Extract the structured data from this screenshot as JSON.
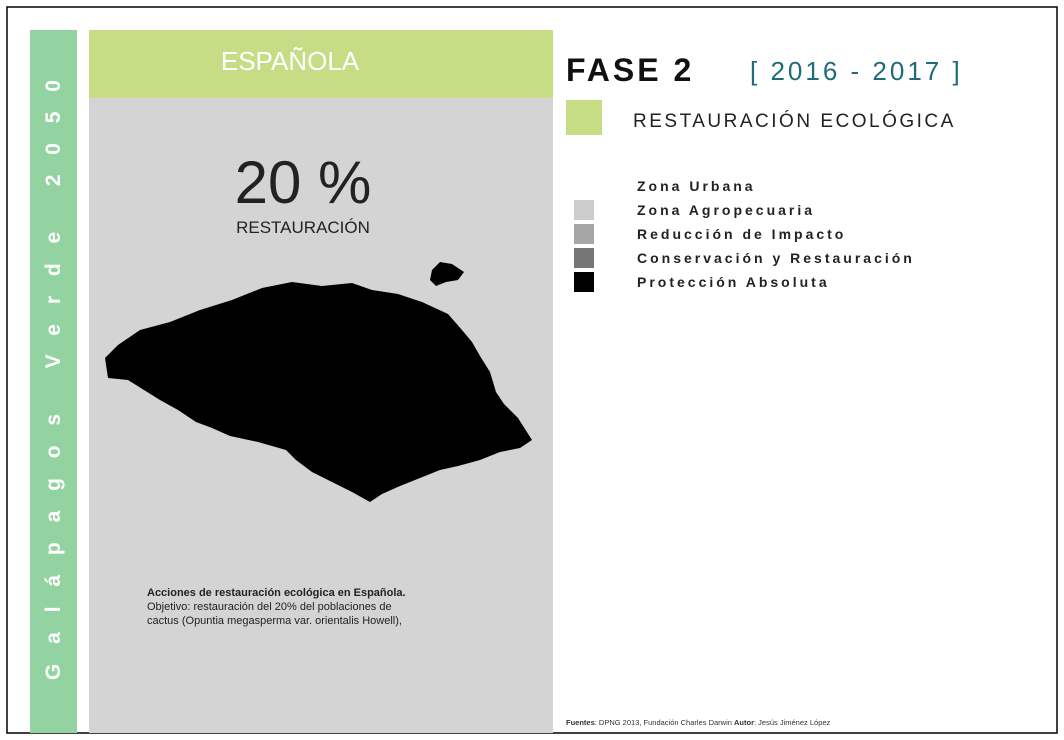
{
  "side_title": "Galápagos Verde 2050",
  "island": {
    "name": "ESPAÑOLA",
    "stat": "20 %",
    "stat_label": "RESTAURACIÓN",
    "caption": {
      "heading": "Acciones de restauración ecológica en Española.",
      "lines": [
        "Objetivo:  restauración del 20% del poblaciones de",
        "cactus (Opuntia megasperma var. orientalis Howell),"
      ]
    }
  },
  "phase": {
    "title": "FASE 2",
    "years": "[ 2016 - 2017 ]",
    "theme": "RESTAURACIÓN ECOLÓGICA"
  },
  "legend": [
    {
      "label": "Zona Urbana",
      "color": "#ffffff"
    },
    {
      "label": "Zona Agropecuaria",
      "color": "#cccccc"
    },
    {
      "label": "Reducción de Impacto",
      "color": "#a6a6a6"
    },
    {
      "label": "Conservación y Restauración",
      "color": "#767676"
    },
    {
      "label": "Protección Absoluta",
      "color": "#000000"
    }
  ],
  "footer": {
    "sources_label": "Fuentes",
    "sources": ": DPNG 2013, Fundación Charles Darwin ",
    "author_label": "Autor",
    "author": ": Jesús Jiménez López"
  }
}
